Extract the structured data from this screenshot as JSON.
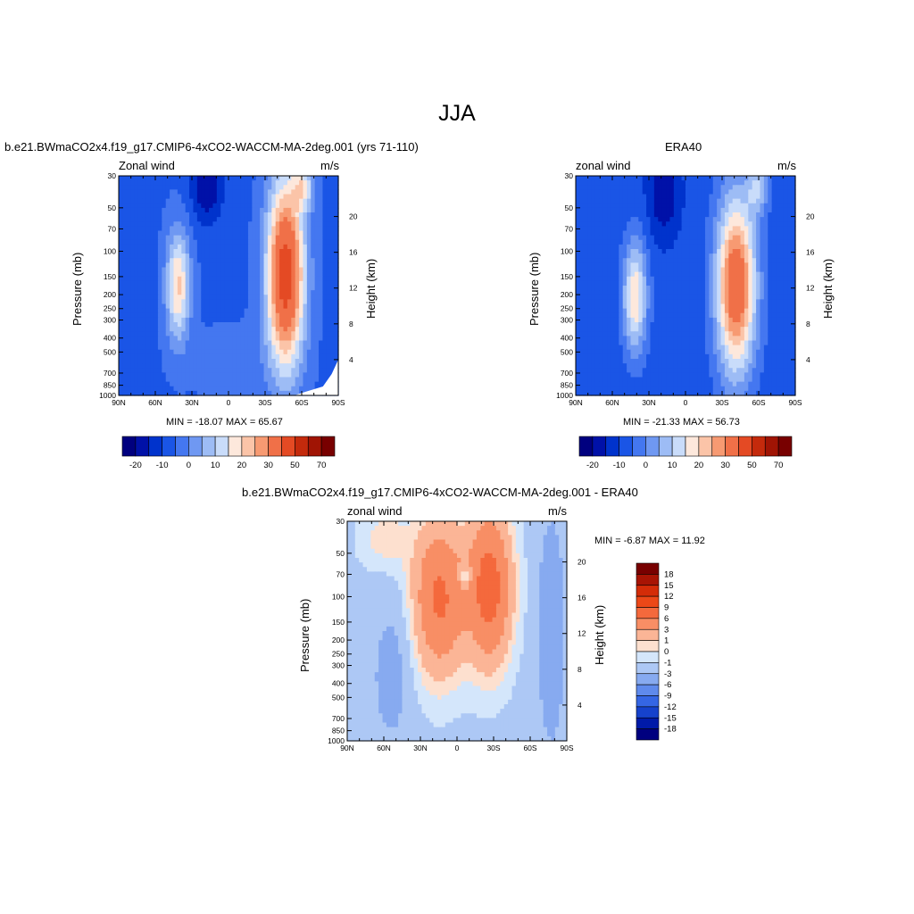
{
  "figure": {
    "title": "JJA"
  },
  "chart_data": [
    {
      "type": "contour",
      "title": "b.e21.BWmaCO2x4.f19_g17.CMIP6-4xCO2-WACCM-MA-2deg.001 (yrs 71-110)",
      "left_label": "Zonal wind",
      "right_label": "m/s",
      "ylabel": "Pressure (mb)",
      "y2label": "Height (km)",
      "x_ticks": [
        "90N",
        "60N",
        "30N",
        "0",
        "30S",
        "60S",
        "90S"
      ],
      "y_ticks": [
        30,
        50,
        70,
        100,
        150,
        200,
        250,
        300,
        400,
        500,
        700,
        850,
        1000
      ],
      "y2_ticks": [
        4,
        8,
        12,
        16,
        20
      ],
      "min_label": "MIN = -18.07  MAX =  65.67",
      "min": -18.07,
      "max": 65.67,
      "colorbar_labels": [
        "-20",
        "-10",
        "0",
        "10",
        "20",
        "30",
        "50",
        "70"
      ],
      "colorbar_orientation": "horizontal"
    },
    {
      "type": "contour",
      "title": "ERA40",
      "left_label": "zonal wind",
      "right_label": "m/s",
      "ylabel": "Pressure (mb)",
      "y2label": "Height (km)",
      "x_ticks": [
        "90N",
        "60N",
        "30N",
        "0",
        "30S",
        "60S",
        "90S"
      ],
      "y_ticks": [
        30,
        50,
        70,
        100,
        150,
        200,
        250,
        300,
        400,
        500,
        700,
        850,
        1000
      ],
      "y2_ticks": [
        4,
        8,
        12,
        16,
        20
      ],
      "min_label": "MIN = -21.33  MAX =  56.73",
      "min": -21.33,
      "max": 56.73,
      "colorbar_labels": [
        "-20",
        "-10",
        "0",
        "10",
        "20",
        "30",
        "50",
        "70"
      ],
      "colorbar_orientation": "horizontal"
    },
    {
      "type": "contour",
      "title": "b.e21.BWmaCO2x4.f19_g17.CMIP6-4xCO2-WACCM-MA-2deg.001 - ERA40",
      "left_label": "zonal wind",
      "right_label": "m/s",
      "ylabel": "Pressure (mb)",
      "y2label": "Height (km)",
      "x_ticks": [
        "90N",
        "60N",
        "30N",
        "0",
        "30S",
        "60S",
        "90S"
      ],
      "y_ticks": [
        30,
        50,
        70,
        100,
        150,
        200,
        250,
        300,
        400,
        500,
        700,
        850,
        1000
      ],
      "y2_ticks": [
        4,
        8,
        12,
        16,
        20
      ],
      "min_label": "MIN =  -6.87  MAX =  11.92",
      "min": -6.87,
      "max": 11.92,
      "colorbar_labels": [
        "18",
        "15",
        "12",
        "9",
        "6",
        "3",
        "1",
        "0",
        "-1",
        "-3",
        "-6",
        "-9",
        "-12",
        "-15",
        "-18"
      ],
      "colorbar_orientation": "vertical"
    }
  ],
  "colors": {
    "abs_palette": [
      "#00007f",
      "#0011a8",
      "#0033cc",
      "#1a55e6",
      "#4477f0",
      "#6f98f2",
      "#9dbcf5",
      "#c9dcfa",
      "#fde8dc",
      "#fbc4a8",
      "#f79a72",
      "#f07048",
      "#e44a24",
      "#c42a0c",
      "#a01404",
      "#780000"
    ],
    "diff_palette": [
      "#780000",
      "#a81404",
      "#d42c08",
      "#ec4818",
      "#f4693c",
      "#f88e65",
      "#fbb596",
      "#fde0cf",
      "#d4e6fb",
      "#adc8f5",
      "#87aaf0",
      "#5f8aec",
      "#3566e4",
      "#1642cc",
      "#001aa8",
      "#00007f"
    ]
  }
}
